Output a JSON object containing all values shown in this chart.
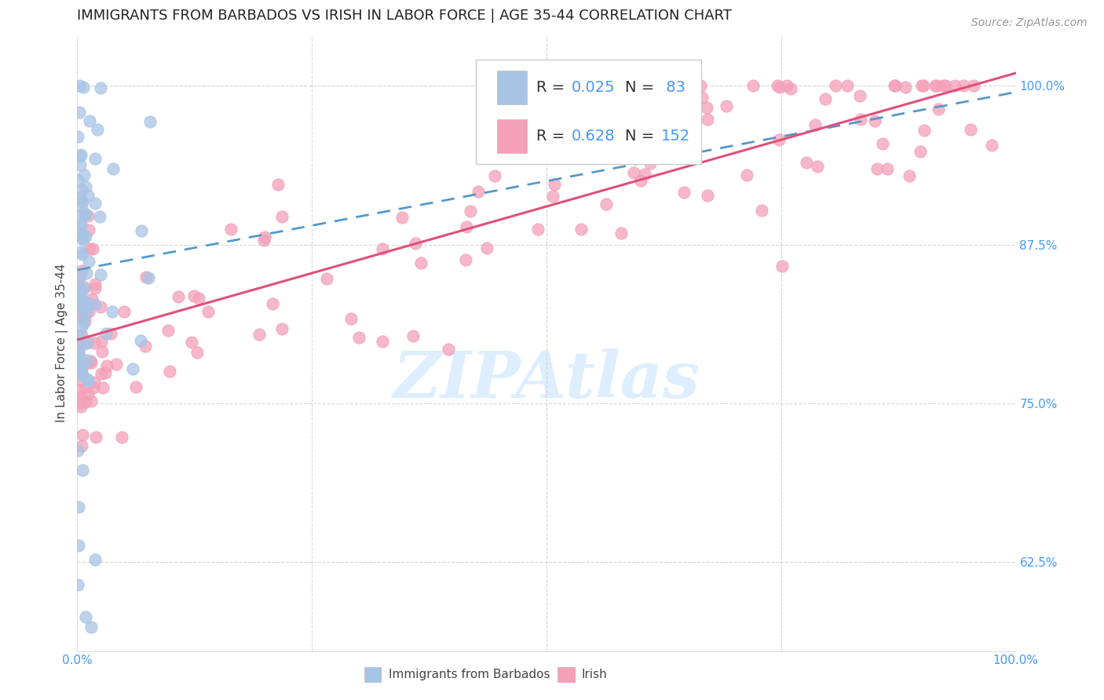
{
  "title": "IMMIGRANTS FROM BARBADOS VS IRISH IN LABOR FORCE | AGE 35-44 CORRELATION CHART",
  "source": "Source: ZipAtlas.com",
  "ylabel": "In Labor Force | Age 35-44",
  "ytick_labels": [
    "62.5%",
    "75.0%",
    "87.5%",
    "100.0%"
  ],
  "ytick_values": [
    0.625,
    0.75,
    0.875,
    1.0
  ],
  "xlim": [
    0.0,
    1.0
  ],
  "ylim": [
    0.555,
    1.04
  ],
  "barbados_scatter_color": "#a8c4e5",
  "irish_scatter_color": "#f4a0b8",
  "barbados_line_color": "#5599cc",
  "irish_line_color": "#e0507a",
  "watermark_text": "ZIPAtlas",
  "watermark_color": "#ddeeff",
  "background_color": "#ffffff",
  "grid_color": "#cccccc",
  "title_fontsize": 13,
  "axis_label_fontsize": 11,
  "tick_fontsize": 11,
  "legend_fontsize": 14,
  "source_fontsize": 10,
  "tick_color": "#4499ff",
  "legend_R1": "0.025",
  "legend_N1": "83",
  "legend_R2": "0.628",
  "legend_N2": "152",
  "bottom_legend_label1": "Immigrants from Barbados",
  "bottom_legend_label2": "Irish"
}
